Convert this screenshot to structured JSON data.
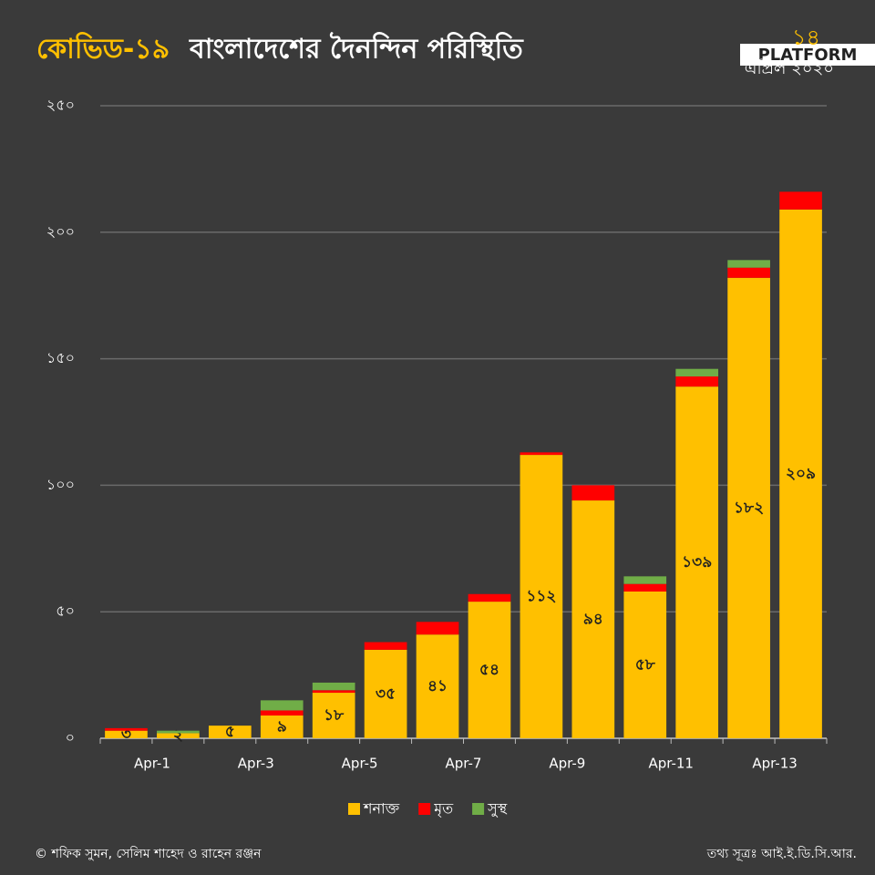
{
  "chart_data": {
    "type": "stacked_bar",
    "title": {
      "highlight": "কোভিড-১৯",
      "rest": "বাংলাদেশের দৈনন্দিন পরিস্থিতি"
    },
    "date": {
      "day": "১৪",
      "month": "এপ্রিল ২০২০"
    },
    "logo": "PLATFORM",
    "categories": [
      "Apr-1",
      null,
      "Apr-3",
      null,
      "Apr-5",
      null,
      "Apr-7",
      null,
      "Apr-9",
      null,
      "Apr-11",
      null,
      "Apr-13",
      null
    ],
    "series": [
      {
        "name": "শনাক্ত",
        "color": "#ffc000",
        "values": [
          3,
          2,
          5,
          9,
          18,
          35,
          41,
          54,
          112,
          94,
          58,
          139,
          182,
          209
        ],
        "value_labels": [
          "৩",
          "২",
          "৫",
          "৯",
          "১৮",
          "৩৫",
          "৪১",
          "৫৪",
          "১১২",
          "৯৪",
          "৫৮",
          "১৩৯",
          "১৮২",
          "২০৯"
        ]
      },
      {
        "name": "মৃত",
        "color": "#ff0000",
        "values": [
          1,
          0,
          0,
          2,
          1,
          3,
          5,
          3,
          1,
          6,
          3,
          4,
          4,
          7
        ]
      },
      {
        "name": "সুস্থ",
        "color": "#70ad47",
        "values": [
          0,
          1,
          0,
          4,
          3,
          0,
          0,
          0,
          0,
          0,
          3,
          3,
          3,
          0
        ]
      }
    ],
    "ylim": [
      0,
      250
    ],
    "yticks": [
      {
        "value": 0,
        "label": "০"
      },
      {
        "value": 50,
        "label": "৫০"
      },
      {
        "value": 100,
        "label": "১০০"
      },
      {
        "value": 150,
        "label": "১৫০"
      },
      {
        "value": 200,
        "label": "২০০"
      },
      {
        "value": 250,
        "label": "২৫০"
      }
    ],
    "grid": true,
    "legend": "bottom",
    "credit": "© শফিক সুমন, সেলিম শাহেদ ও রাহেন রঞ্জন",
    "source": "তথ্য সূত্রঃ আই.ই.ডি.সি.আর."
  }
}
